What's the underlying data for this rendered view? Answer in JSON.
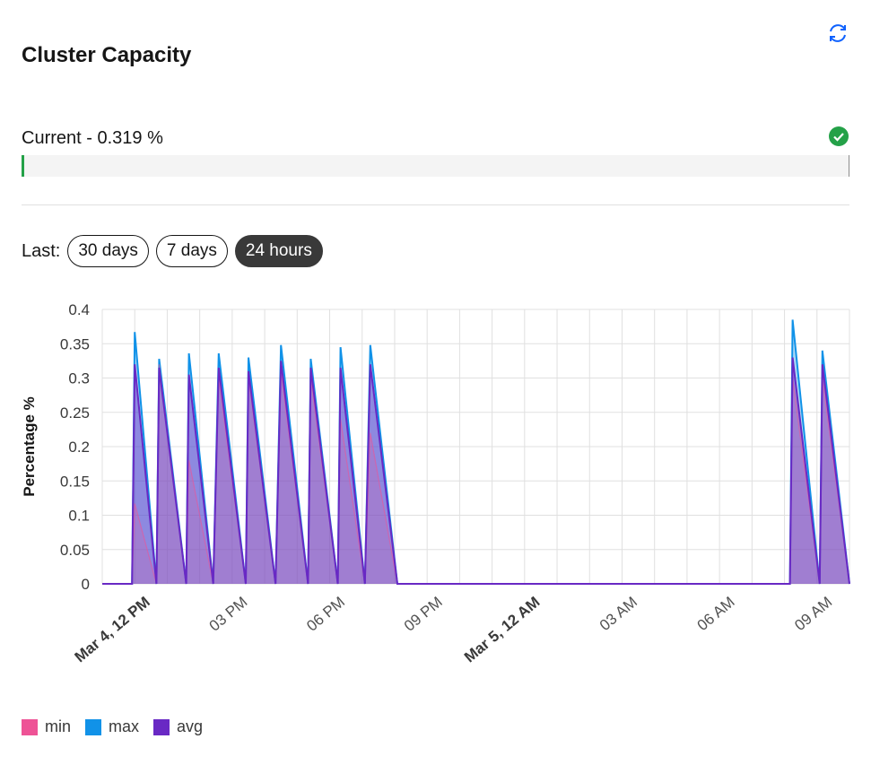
{
  "header": {
    "title": "Cluster Capacity",
    "refresh_icon": "refresh-icon"
  },
  "current": {
    "label": "Current - 0.319 %",
    "value_percent": 0.319,
    "status_icon": "checkmark-circle-icon",
    "status_color": "#24a148"
  },
  "range": {
    "label": "Last:",
    "options": [
      "30 days",
      "7 days",
      "24 hours"
    ],
    "selected": "24 hours"
  },
  "chart_data": {
    "type": "area",
    "ylabel": "Percentage %",
    "ylim": [
      0,
      0.4
    ],
    "yticks": [
      "0",
      "0.05",
      "0.1",
      "0.15",
      "0.2",
      "0.25",
      "0.3",
      "0.35",
      "0.4"
    ],
    "x_range_hours": [
      "Mar 4 11:00",
      "Mar 5 10:00"
    ],
    "xticks": [
      {
        "label": "Mar 4, 12 PM",
        "bold": true
      },
      {
        "label": "03 PM",
        "bold": false
      },
      {
        "label": "06 PM",
        "bold": false
      },
      {
        "label": "09 PM",
        "bold": false
      },
      {
        "label": "Mar 5, 12 AM",
        "bold": true
      },
      {
        "label": "03 AM",
        "bold": false
      },
      {
        "label": "06 AM",
        "bold": false
      },
      {
        "label": "09 AM",
        "bold": false
      }
    ],
    "grid": true,
    "legend_position": "bottom-left",
    "series": [
      {
        "name": "min",
        "color": "#ee5396"
      },
      {
        "name": "max",
        "color": "#1192e8"
      },
      {
        "name": "avg",
        "color": "#6929c4"
      }
    ],
    "points": [
      {
        "x": "Mar 4 11:00",
        "min": 0,
        "max": 0,
        "avg": 0
      },
      {
        "x": "Mar 4 11:55",
        "min": 0,
        "max": 0,
        "avg": 0
      },
      {
        "x": "Mar 4 12:00",
        "min": 0.117,
        "max": 0.367,
        "avg": 0.32
      },
      {
        "x": "Mar 4 12:40",
        "min": 0,
        "max": 0,
        "avg": 0
      },
      {
        "x": "Mar 4 12:45",
        "min": 0.32,
        "max": 0.328,
        "avg": 0.315
      },
      {
        "x": "Mar 4 13:35",
        "min": 0,
        "max": 0,
        "avg": 0
      },
      {
        "x": "Mar 4 13:40",
        "min": 0.18,
        "max": 0.336,
        "avg": 0.305
      },
      {
        "x": "Mar 4 14:25",
        "min": 0,
        "max": 0,
        "avg": 0
      },
      {
        "x": "Mar 4 14:35",
        "min": 0.3,
        "max": 0.336,
        "avg": 0.315
      },
      {
        "x": "Mar 4 15:25",
        "min": 0,
        "max": 0,
        "avg": 0
      },
      {
        "x": "Mar 4 15:30",
        "min": 0.3,
        "max": 0.33,
        "avg": 0.31
      },
      {
        "x": "Mar 4 16:20",
        "min": 0,
        "max": 0,
        "avg": 0
      },
      {
        "x": "Mar 4 16:30",
        "min": 0.31,
        "max": 0.348,
        "avg": 0.325
      },
      {
        "x": "Mar 4 17:20",
        "min": 0,
        "max": 0,
        "avg": 0
      },
      {
        "x": "Mar 4 17:25",
        "min": 0.3,
        "max": 0.328,
        "avg": 0.315
      },
      {
        "x": "Mar 4 18:15",
        "min": 0,
        "max": 0,
        "avg": 0
      },
      {
        "x": "Mar 4 18:20",
        "min": 0.24,
        "max": 0.345,
        "avg": 0.315
      },
      {
        "x": "Mar 4 19:05",
        "min": 0,
        "max": 0,
        "avg": 0
      },
      {
        "x": "Mar 4 19:15",
        "min": 0.22,
        "max": 0.348,
        "avg": 0.32
      },
      {
        "x": "Mar 4 20:05",
        "min": 0,
        "max": 0,
        "avg": 0
      },
      {
        "x": "Mar 5 08:10",
        "min": 0,
        "max": 0,
        "avg": 0
      },
      {
        "x": "Mar 5 08:15",
        "min": 0.3,
        "max": 0.385,
        "avg": 0.33
      },
      {
        "x": "Mar 5 09:05",
        "min": 0,
        "max": 0,
        "avg": 0
      },
      {
        "x": "Mar 5 09:10",
        "min": 0.3,
        "max": 0.34,
        "avg": 0.32
      },
      {
        "x": "Mar 5 10:00",
        "min": 0,
        "max": 0,
        "avg": 0
      }
    ]
  }
}
